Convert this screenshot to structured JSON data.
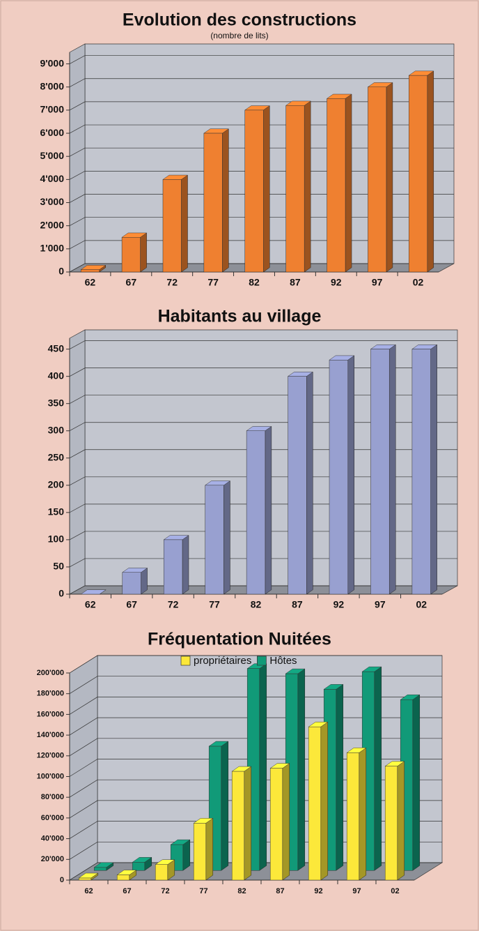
{
  "chart_data": [
    {
      "type": "bar3d",
      "title": "Evolution des constructions",
      "subtitle": "(nombre de lits)",
      "categories": [
        "62",
        "67",
        "72",
        "77",
        "82",
        "87",
        "92",
        "97",
        "02"
      ],
      "values": [
        100,
        1500,
        4000,
        6000,
        7000,
        7200,
        7500,
        8000,
        8500
      ],
      "color": "#ef8030",
      "ylim": [
        0,
        9500
      ],
      "yticks": [
        0,
        {
          "value": 1000,
          "label": "1'000"
        },
        {
          "value": 2000,
          "label": "2'000"
        },
        {
          "value": 3000,
          "label": "3'000"
        },
        {
          "value": 4000,
          "label": "4'000"
        },
        {
          "value": 5000,
          "label": "5'000"
        },
        {
          "value": 6000,
          "label": "6'000"
        },
        {
          "value": 7000,
          "label": "7'000"
        },
        {
          "value": 8000,
          "label": "8'000"
        },
        {
          "value": 9000,
          "label": "9'000"
        }
      ],
      "grid": true
    },
    {
      "type": "bar3d",
      "title": "Habitants au village",
      "categories": [
        "62",
        "67",
        "72",
        "77",
        "82",
        "87",
        "92",
        "97",
        "02"
      ],
      "values": [
        0,
        40,
        100,
        200,
        300,
        400,
        430,
        450,
        450
      ],
      "color": "#98a0d0",
      "ylim": [
        0,
        470
      ],
      "yticks": [
        0,
        50,
        100,
        150,
        200,
        250,
        300,
        350,
        400,
        450
      ],
      "grid": true
    },
    {
      "type": "bar3d",
      "title": "Fréquentation Nuitées",
      "categories": [
        "62",
        "67",
        "72",
        "77",
        "82",
        "87",
        "92",
        "97",
        "02"
      ],
      "series": [
        {
          "name": "propriétaires",
          "color": "#fce83a",
          "values": [
            2000,
            5000,
            15000,
            55000,
            105000,
            108000,
            148000,
            123000,
            110000
          ]
        },
        {
          "name": "Hôtes",
          "color": "#119a78",
          "values": [
            3000,
            8000,
            25000,
            120000,
            195000,
            190000,
            175000,
            192000,
            165000
          ]
        }
      ],
      "ylim": [
        0,
        200000
      ],
      "yticks": [
        0,
        {
          "value": 20000,
          "label": "20'000"
        },
        {
          "value": 40000,
          "label": "40'000"
        },
        {
          "value": 60000,
          "label": "60'000"
        },
        {
          "value": 80000,
          "label": "80'000"
        },
        {
          "value": 100000,
          "label": "100'000"
        },
        {
          "value": 120000,
          "label": "120'000"
        },
        {
          "value": 140000,
          "label": "140'000"
        },
        {
          "value": 160000,
          "label": "160'000"
        },
        {
          "value": 180000,
          "label": "180'000"
        },
        {
          "value": 200000,
          "label": "200'000"
        }
      ],
      "grid": true
    }
  ]
}
